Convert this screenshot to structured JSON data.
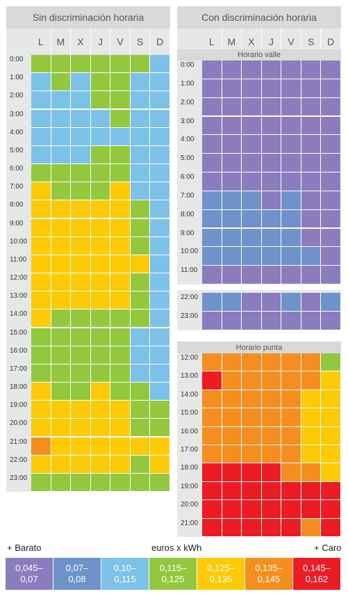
{
  "colors": {
    "t1": "#8a7cbd",
    "t2": "#6e92c9",
    "t3": "#7cc1e8",
    "t4": "#93c83e",
    "t5": "#fcca06",
    "t6": "#f58e1f",
    "t7": "#ec1c24"
  },
  "days": [
    "L",
    "M",
    "X",
    "J",
    "V",
    "S",
    "D"
  ],
  "left": {
    "title": "Sin discriminación horaria",
    "hours": [
      "0:00",
      "1:00",
      "2:00",
      "3:00",
      "4:00",
      "5:00",
      "6:00",
      "7:00",
      "8:00",
      "9:00",
      "10:00",
      "11:00",
      "12:00",
      "13:00",
      "14:00",
      "15:00",
      "16:00",
      "17:00",
      "18:00",
      "19:00",
      "20:00",
      "21:00",
      "22:00",
      "23:00"
    ],
    "grid": [
      [
        4,
        4,
        4,
        4,
        4,
        4,
        3
      ],
      [
        3,
        4,
        3,
        4,
        4,
        3,
        3
      ],
      [
        3,
        3,
        3,
        4,
        4,
        3,
        3
      ],
      [
        3,
        3,
        3,
        3,
        4,
        3,
        3
      ],
      [
        3,
        3,
        3,
        3,
        3,
        3,
        3
      ],
      [
        3,
        3,
        3,
        4,
        4,
        3,
        3
      ],
      [
        4,
        4,
        4,
        4,
        4,
        3,
        3
      ],
      [
        5,
        4,
        4,
        4,
        5,
        3,
        3
      ],
      [
        5,
        5,
        5,
        5,
        5,
        4,
        3
      ],
      [
        5,
        5,
        5,
        5,
        5,
        4,
        3
      ],
      [
        5,
        5,
        5,
        5,
        5,
        4,
        3
      ],
      [
        5,
        5,
        5,
        5,
        5,
        5,
        3
      ],
      [
        5,
        5,
        5,
        5,
        5,
        4,
        3
      ],
      [
        5,
        5,
        5,
        5,
        5,
        4,
        3
      ],
      [
        5,
        4,
        4,
        4,
        4,
        4,
        3
      ],
      [
        4,
        4,
        4,
        4,
        4,
        3,
        3
      ],
      [
        4,
        4,
        4,
        4,
        4,
        3,
        3
      ],
      [
        4,
        4,
        4,
        4,
        4,
        3,
        3
      ],
      [
        5,
        4,
        4,
        5,
        4,
        4,
        3
      ],
      [
        5,
        5,
        5,
        5,
        5,
        4,
        4
      ],
      [
        5,
        5,
        5,
        5,
        5,
        4,
        4
      ],
      [
        6,
        5,
        5,
        5,
        5,
        5,
        5
      ],
      [
        5,
        5,
        5,
        5,
        5,
        4,
        5
      ],
      [
        4,
        4,
        4,
        4,
        4,
        4,
        4
      ]
    ]
  },
  "right": {
    "title": "Con discriminación horaria",
    "valle": {
      "subtitle": "Horario valle",
      "hours": [
        "0:00",
        "1:00",
        "2:00",
        "3:00",
        "4:00",
        "5:00",
        "6:00",
        "7:00",
        "8:00",
        "9:00",
        "10:00",
        "11:00"
      ],
      "grid": [
        [
          1,
          1,
          1,
          1,
          1,
          1,
          1
        ],
        [
          1,
          1,
          1,
          1,
          1,
          1,
          1
        ],
        [
          1,
          1,
          1,
          1,
          1,
          1,
          1
        ],
        [
          1,
          1,
          1,
          1,
          1,
          1,
          1
        ],
        [
          1,
          1,
          1,
          1,
          1,
          1,
          1
        ],
        [
          1,
          1,
          1,
          1,
          1,
          1,
          1
        ],
        [
          1,
          1,
          1,
          1,
          1,
          1,
          1
        ],
        [
          2,
          2,
          2,
          1,
          2,
          1,
          1
        ],
        [
          2,
          2,
          2,
          2,
          2,
          1,
          1
        ],
        [
          2,
          2,
          2,
          2,
          2,
          1,
          1
        ],
        [
          2,
          2,
          2,
          2,
          2,
          2,
          1
        ],
        [
          1,
          1,
          1,
          1,
          1,
          1,
          1
        ]
      ]
    },
    "valle2": {
      "hours": [
        "22:00",
        "23:00"
      ],
      "grid": [
        [
          2,
          2,
          1,
          1,
          2,
          1,
          2
        ],
        [
          1,
          1,
          1,
          1,
          1,
          1,
          1
        ]
      ]
    },
    "punta": {
      "subtitle": "Horario punta",
      "hours": [
        "12:00",
        "13:00",
        "14:00",
        "15:00",
        "16:00",
        "17:00",
        "18:00",
        "19:00",
        "20:00",
        "21:00"
      ],
      "grid": [
        [
          6,
          6,
          6,
          6,
          6,
          6,
          4
        ],
        [
          7,
          6,
          6,
          6,
          6,
          6,
          5
        ],
        [
          6,
          6,
          6,
          6,
          6,
          5,
          5
        ],
        [
          6,
          6,
          6,
          6,
          6,
          5,
          5
        ],
        [
          6,
          6,
          6,
          6,
          6,
          5,
          5
        ],
        [
          6,
          6,
          6,
          6,
          6,
          5,
          5
        ],
        [
          7,
          7,
          7,
          7,
          6,
          6,
          5
        ],
        [
          7,
          7,
          7,
          7,
          7,
          7,
          7
        ],
        [
          7,
          7,
          7,
          7,
          7,
          7,
          7
        ],
        [
          7,
          7,
          7,
          7,
          7,
          6,
          7
        ]
      ]
    }
  },
  "legend": {
    "cheap": "+ Barato",
    "unit": "euros x kWh",
    "expensive": "+ Caro",
    "items": [
      {
        "top": "0,045–",
        "bottom": "0,07"
      },
      {
        "top": "0,07–",
        "bottom": "0,08"
      },
      {
        "top": "0,10–",
        "bottom": "0,115"
      },
      {
        "top": "0,115–",
        "bottom": "0,125"
      },
      {
        "top": "0,125–",
        "bottom": "0,135"
      },
      {
        "top": "0,135–",
        "bottom": "0,145"
      },
      {
        "top": "0,145–",
        "bottom": "0,162"
      }
    ]
  }
}
